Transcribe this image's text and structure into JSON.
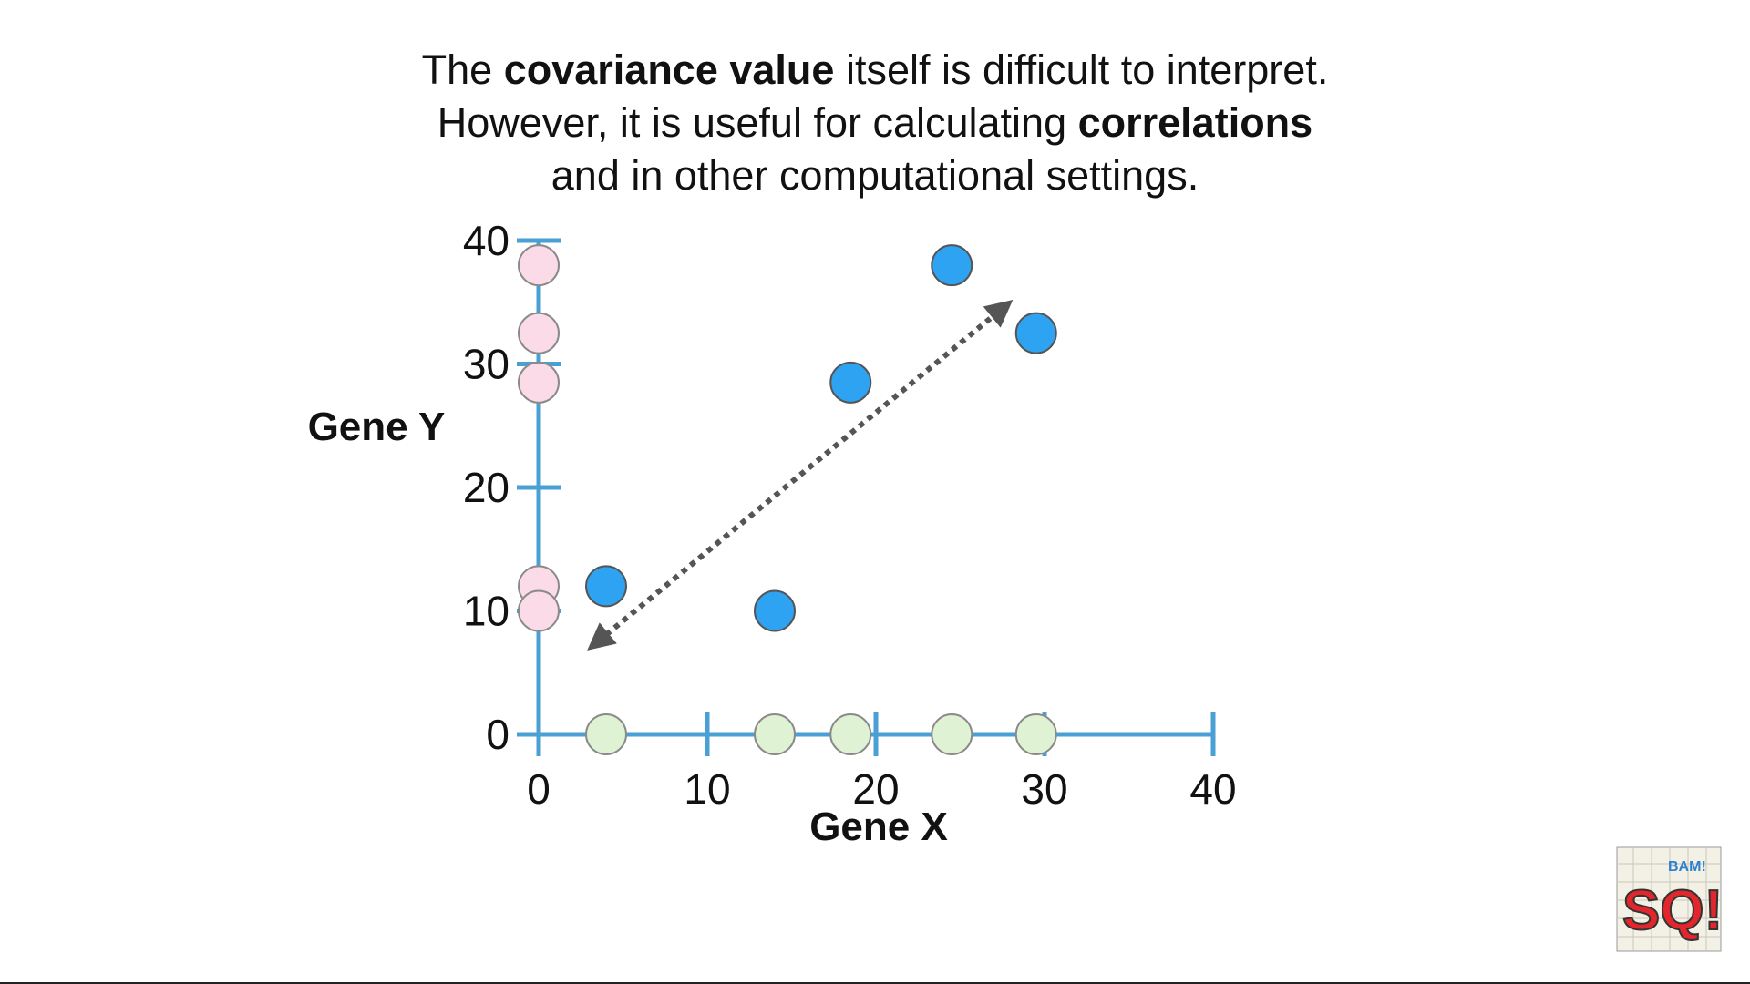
{
  "caption": {
    "line1_a": "The ",
    "line1_b": "covariance value",
    "line1_c": " itself is difficult to interpret.",
    "line2_a": "However, it is useful for calculating ",
    "line2_b": "correlations",
    "line3": "and in other computational settings."
  },
  "chart_data": {
    "type": "scatter",
    "xlabel": "Gene X",
    "ylabel": "Gene Y",
    "xlim": [
      0,
      40
    ],
    "ylim": [
      0,
      40
    ],
    "x_ticks": [
      0,
      10,
      20,
      30,
      40
    ],
    "y_ticks": [
      0,
      10,
      20,
      30,
      40
    ],
    "grid": false,
    "series": [
      {
        "role": "points",
        "color": "#2ea3f2",
        "points": [
          {
            "x": 4,
            "y": 12
          },
          {
            "x": 14,
            "y": 10
          },
          {
            "x": 18.5,
            "y": 28.5
          },
          {
            "x": 24.5,
            "y": 38
          },
          {
            "x": 29.5,
            "y": 32.5
          }
        ]
      },
      {
        "role": "y-projections",
        "color": "#fadbe7",
        "values": [
          12,
          10,
          28.5,
          38,
          32.5
        ]
      },
      {
        "role": "x-projections",
        "color": "#dff3d4",
        "values": [
          4,
          14,
          18.5,
          24.5,
          29.5
        ]
      }
    ],
    "annotation": {
      "type": "double-arrow",
      "from": {
        "x": 3.5,
        "y": 7.5
      },
      "to": {
        "x": 27.5,
        "y": 34.5
      },
      "color": "#555555"
    },
    "axis_color": "#4a9fd5"
  },
  "logo": {
    "text": "SQ!",
    "sub": "BAM!"
  }
}
